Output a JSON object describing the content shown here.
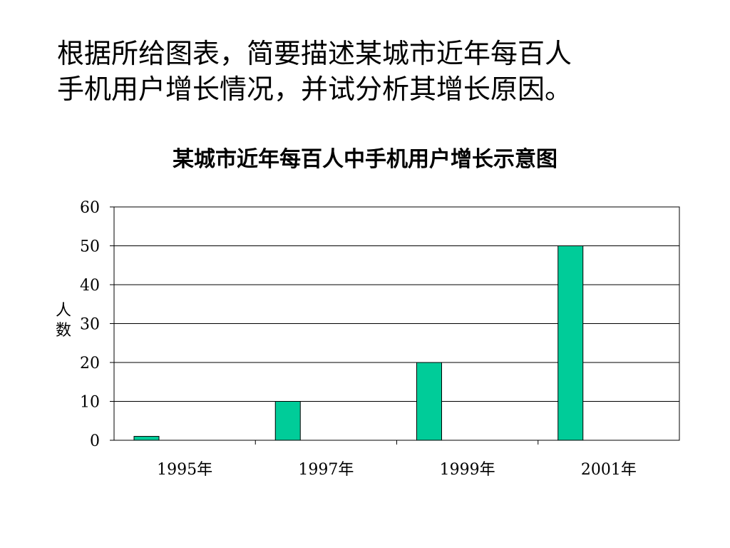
{
  "prompt": {
    "line1": "根据所给图表，简要描述某城市近年每百人",
    "line2": "手机用户增长情况，并试分析其增长原因。"
  },
  "chart_data": {
    "type": "bar",
    "title": "某城市近年每百人中手机用户增长示意图",
    "categories": [
      "1995年",
      "1997年",
      "1999年",
      "2001年"
    ],
    "values": [
      1,
      10,
      20,
      50
    ],
    "ylabel_chars": [
      "人",
      "数"
    ],
    "ylim": [
      0,
      60
    ],
    "yticks": [
      0,
      10,
      20,
      30,
      40,
      50,
      60
    ],
    "grid": true,
    "bar_color": "#00CC99"
  }
}
